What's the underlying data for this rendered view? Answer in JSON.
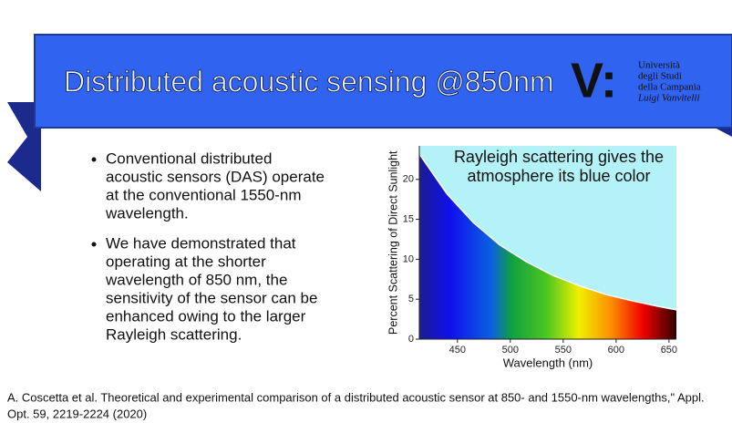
{
  "header": {
    "title": "Distributed acoustic sensing @850nm",
    "logo": {
      "mark": "V:",
      "lines": [
        "Università",
        "degli Studi",
        "della Campania",
        "Luigi Vanvitelli"
      ]
    }
  },
  "bullets": [
    [
      "Conventional distributed",
      "acoustic sensors (DAS) operate",
      "at the conventional 1550-nm",
      "wavelength."
    ],
    [
      "We have demonstrated that",
      "operating at the shorter",
      "wavelength of 850 nm, the",
      "sensitivity of the sensor can be",
      "enhanced owing to the larger",
      "Rayleigh scattering."
    ]
  ],
  "chart_data": {
    "type": "line",
    "annotation": [
      "Rayleigh scattering gives the",
      "atmosphere its blue color"
    ],
    "x_label": "Wavelength (nm)",
    "y_label": "Percent Scattering of Direct Sunlight",
    "x": [
      415,
      440,
      465,
      490,
      515,
      540,
      565,
      590,
      615,
      640,
      660
    ],
    "values": [
      23,
      18.2,
      14.6,
      11.8,
      9.7,
      8.0,
      6.7,
      5.6,
      4.8,
      4.1,
      3.6
    ],
    "color": "#ffffff",
    "xlim": [
      414,
      657
    ],
    "ylim": [
      0,
      24.2
    ],
    "xticks": [
      450,
      500,
      550,
      600,
      650
    ],
    "yticks": [
      0,
      5,
      10,
      15,
      20
    ]
  },
  "citation": [
    "A. Coscetta et al. Theoretical and experimental comparison of a distributed acoustic sensor at 850- and 1550-nm wavelengths,\" Appl.",
    "Opt. 59, 2219-2224 (2020)"
  ]
}
